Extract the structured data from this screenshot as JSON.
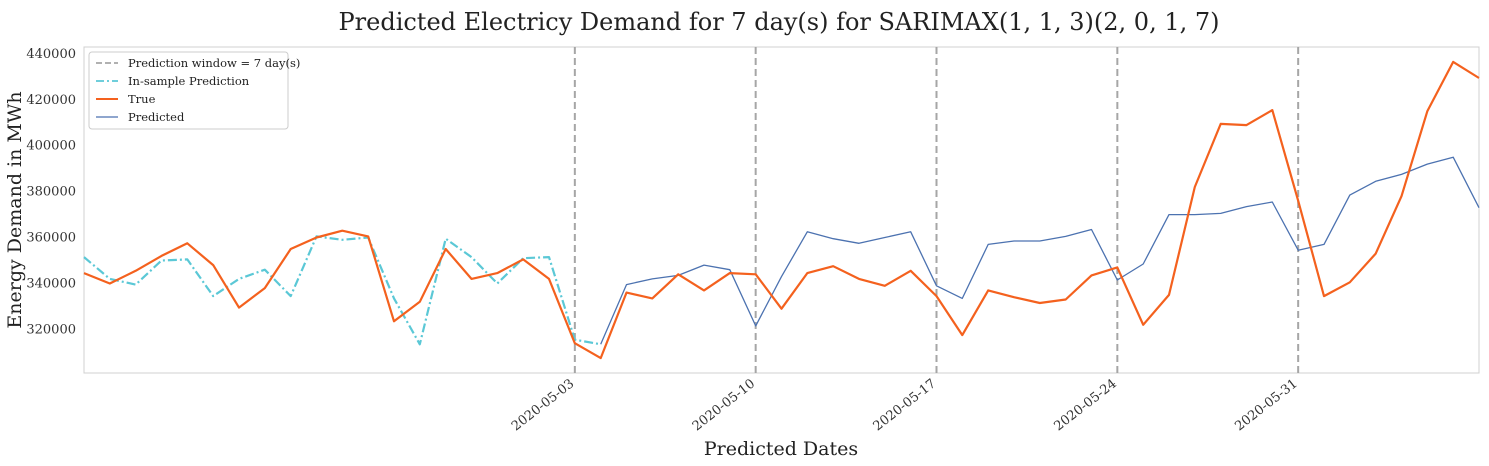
{
  "chart_data": {
    "type": "line",
    "title": "Predicted Electricy Demand for 7 day(s) for SARIMAX(1, 1, 3)(2, 0, 1, 7)",
    "xlabel": "Predicted Dates",
    "ylabel": "Energy Demand in MWh",
    "x_ticks": [
      {
        "label": "2020-05-03",
        "day": 19
      },
      {
        "label": "2020-05-10",
        "day": 26
      },
      {
        "label": "2020-05-17",
        "day": 33
      },
      {
        "label": "2020-05-24",
        "day": 40
      },
      {
        "label": "2020-05-31",
        "day": 47
      }
    ],
    "y_ticks": [
      "320000",
      "340000",
      "360000",
      "380000",
      "400000",
      "420000",
      "440000"
    ],
    "y_tick_values": [
      320000,
      340000,
      360000,
      380000,
      400000,
      420000,
      440000
    ],
    "ylim": [
      301000,
      443000
    ],
    "xlim": [
      0,
      54
    ],
    "grid": false,
    "legend_position": "top-left",
    "prediction_windows_day": [
      19,
      26,
      33,
      40,
      47
    ],
    "colors": {
      "window": "#a6a6a6",
      "in_sample": "#5bc8d6",
      "true": "#f4611e",
      "predicted": "#4c72b0",
      "frame": "#d0d0d0"
    },
    "legend": [
      {
        "label": "Prediction window = 7 day(s)",
        "style": "window"
      },
      {
        "label": "In-sample Prediction",
        "style": "in_sample"
      },
      {
        "label": "True",
        "style": "true"
      },
      {
        "label": "Predicted",
        "style": "predicted"
      }
    ],
    "series": [
      {
        "name": "True",
        "x": [
          0,
          1,
          2,
          3,
          4,
          5,
          6,
          7,
          8,
          9,
          10,
          11,
          12,
          13,
          14,
          15,
          16,
          17,
          18,
          19,
          20,
          21,
          22,
          23,
          24,
          25,
          26,
          27,
          28,
          29,
          30,
          31,
          32,
          33,
          34,
          35,
          36,
          37,
          38,
          39,
          40,
          41,
          42,
          43,
          44,
          45,
          46,
          47,
          48,
          49,
          50,
          51,
          52,
          53,
          54
        ],
        "values": [
          344500,
          340000,
          345500,
          352000,
          357500,
          348000,
          329500,
          338000,
          355000,
          360000,
          363000,
          360500,
          323500,
          332000,
          355000,
          342000,
          344500,
          350500,
          342000,
          314000,
          307500,
          336000,
          333500,
          344000,
          337000,
          344500,
          344000,
          329000,
          344500,
          347500,
          342000,
          339000,
          345500,
          334500,
          317500,
          337000,
          334000,
          331500,
          333000,
          343500,
          347000,
          322000,
          335000,
          382000,
          409500,
          409000,
          415500,
          376000,
          334500,
          340500,
          353000,
          378000,
          415000,
          436500,
          429500
        ]
      },
      {
        "name": "In-sample Prediction",
        "x": [
          0,
          1,
          2,
          3,
          4,
          5,
          6,
          7,
          8,
          9,
          10,
          11,
          12,
          13,
          14,
          15,
          16,
          17,
          18,
          19,
          20
        ],
        "values": [
          351500,
          342000,
          339500,
          350000,
          350500,
          334500,
          342000,
          346000,
          334500,
          360500,
          359000,
          360000,
          333500,
          313500,
          359500,
          351500,
          340000,
          351000,
          351500,
          315500,
          313500
        ]
      },
      {
        "name": "Predicted",
        "x": [
          20,
          21,
          22,
          23,
          24,
          25,
          26,
          27,
          28,
          29,
          30,
          31,
          32,
          33,
          34,
          35,
          36,
          37,
          38,
          39,
          40,
          41,
          42,
          43,
          44,
          45,
          46,
          47,
          48,
          49,
          50,
          51,
          52,
          53,
          54
        ],
        "values": [
          313500,
          339500,
          342000,
          343500,
          348000,
          346000,
          321500,
          343000,
          362500,
          359500,
          357500,
          360000,
          362500,
          339000,
          333500,
          357000,
          358500,
          358500,
          360500,
          363500,
          341500,
          348500,
          370000,
          370000,
          370500,
          373500,
          375500,
          354500,
          357000,
          378500,
          384500,
          387500,
          392000,
          395000,
          373000
        ]
      }
    ]
  }
}
